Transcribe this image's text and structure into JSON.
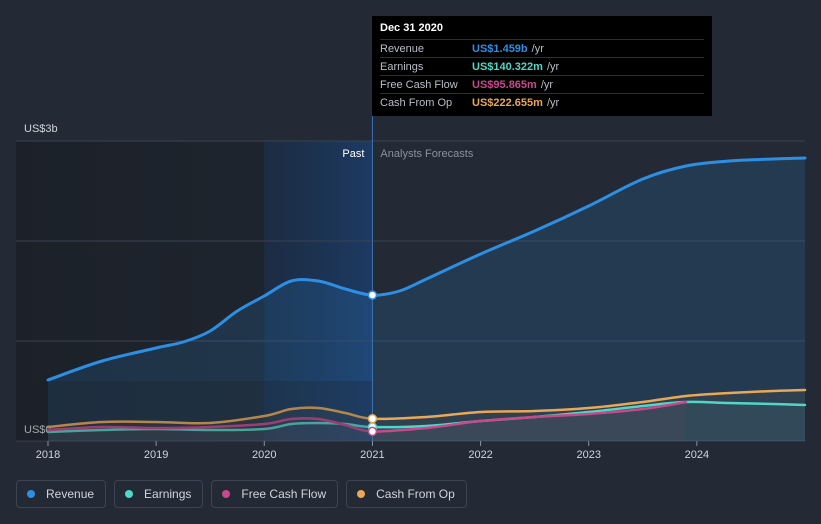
{
  "chart_data": {
    "type": "line",
    "title": "",
    "xlabel": "",
    "ylabel": "",
    "y_axis_labels": {
      "top": "US$3b",
      "bottom": "US$0"
    },
    "ylim": [
      0,
      3.0
    ],
    "xlim": [
      2018,
      2025
    ],
    "x_ticks": [
      "2018",
      "2019",
      "2020",
      "2021",
      "2022",
      "2023",
      "2024"
    ],
    "regions": {
      "past_label": "Past",
      "forecast_label": "Analysts Forecasts",
      "split_x": 2021.0,
      "past_highlight_start": 2020.0
    },
    "series": [
      {
        "name": "Revenue",
        "color": "#2d8fe3",
        "x": [
          2018.0,
          2018.5,
          2019.0,
          2019.25,
          2019.5,
          2019.75,
          2020.0,
          2020.25,
          2020.5,
          2020.75,
          2021.0,
          2021.25,
          2021.5,
          2022.0,
          2022.5,
          2023.0,
          2023.5,
          2023.9,
          2024.3,
          2024.7,
          2025.0
        ],
        "values": [
          0.61,
          0.8,
          0.93,
          0.99,
          1.1,
          1.3,
          1.45,
          1.6,
          1.6,
          1.52,
          1.459,
          1.5,
          1.62,
          1.87,
          2.1,
          2.35,
          2.62,
          2.75,
          2.8,
          2.82,
          2.83
        ]
      },
      {
        "name": "Earnings",
        "color": "#4fd8c6",
        "x": [
          2018.0,
          2018.5,
          2019.0,
          2019.5,
          2020.0,
          2020.25,
          2020.5,
          2020.75,
          2021.0,
          2021.5,
          2022.0,
          2022.5,
          2023.0,
          2023.5,
          2023.9,
          2024.3,
          2024.7,
          2025.0
        ],
        "values": [
          0.09,
          0.11,
          0.12,
          0.11,
          0.12,
          0.17,
          0.18,
          0.17,
          0.14,
          0.15,
          0.2,
          0.24,
          0.29,
          0.35,
          0.39,
          0.38,
          0.37,
          0.36
        ]
      },
      {
        "name": "Free Cash Flow",
        "color": "#c9488c",
        "x": [
          2018.0,
          2018.5,
          2019.0,
          2019.5,
          2020.0,
          2020.25,
          2020.5,
          2020.75,
          2021.0,
          2021.5,
          2022.0,
          2022.5,
          2023.0,
          2023.5,
          2023.9
        ],
        "values": [
          0.11,
          0.14,
          0.13,
          0.14,
          0.17,
          0.22,
          0.22,
          0.16,
          0.096,
          0.13,
          0.2,
          0.24,
          0.27,
          0.32,
          0.39
        ]
      },
      {
        "name": "Cash From Op",
        "color": "#e8a857",
        "x": [
          2018.0,
          2018.5,
          2019.0,
          2019.5,
          2020.0,
          2020.25,
          2020.5,
          2020.75,
          2021.0,
          2021.5,
          2022.0,
          2022.5,
          2023.0,
          2023.5,
          2023.9,
          2024.3,
          2024.7,
          2025.0
        ],
        "values": [
          0.14,
          0.19,
          0.19,
          0.18,
          0.25,
          0.32,
          0.33,
          0.28,
          0.223,
          0.24,
          0.29,
          0.3,
          0.33,
          0.39,
          0.45,
          0.48,
          0.5,
          0.51
        ]
      }
    ]
  },
  "tooltip": {
    "date": "Dec 31 2020",
    "rows": [
      {
        "label": "Revenue",
        "value": "US$1.459b",
        "unit": "/yr",
        "color": "#2d8fe3"
      },
      {
        "label": "Earnings",
        "value": "US$140.322m",
        "unit": "/yr",
        "color": "#4fd8c6"
      },
      {
        "label": "Free Cash Flow",
        "value": "US$95.865m",
        "unit": "/yr",
        "color": "#c9488c"
      },
      {
        "label": "Cash From Op",
        "value": "US$222.655m",
        "unit": "/yr",
        "color": "#e8a857"
      }
    ]
  },
  "legend": [
    {
      "label": "Revenue",
      "color": "#2d8fe3"
    },
    {
      "label": "Earnings",
      "color": "#4fd8c6"
    },
    {
      "label": "Free Cash Flow",
      "color": "#c9488c"
    },
    {
      "label": "Cash From Op",
      "color": "#e8a857"
    }
  ]
}
